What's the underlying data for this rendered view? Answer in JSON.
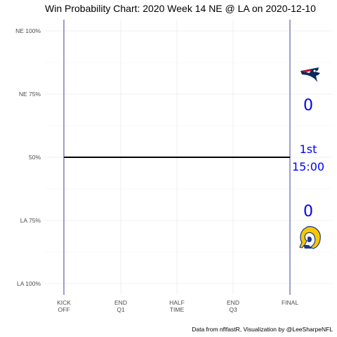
{
  "chart_data": {
    "type": "line",
    "title": "Win Probability Chart: 2020 Week 14 NE @ LA on 2020-12-10",
    "caption": "Data from nflfastR, Visualization by @LeeSharpeNFL",
    "xlabel": "",
    "ylabel": "",
    "x_ticks": [
      {
        "lines": [
          "KICK",
          "OFF"
        ]
      },
      {
        "lines": [
          "END",
          "Q1"
        ]
      },
      {
        "lines": [
          "HALF",
          "TIME"
        ]
      },
      {
        "lines": [
          "END",
          "Q3"
        ]
      },
      {
        "lines": [
          "FINAL"
        ]
      }
    ],
    "y_ticks": [
      "NE 100%",
      "NE 75%",
      "50%",
      "LA 75%",
      "LA 100%"
    ],
    "ylim": [
      0,
      1
    ],
    "grid": true,
    "series": [
      {
        "x": [
          0,
          3600
        ],
        "y": [
          0.5,
          0.5
        ],
        "color": "#000000"
      }
    ],
    "away": {
      "team": "NE",
      "score": "0",
      "color": "#0000ff",
      "logo": "patriots-logo"
    },
    "home": {
      "team": "LA",
      "score": "0",
      "color": "#0000ff",
      "logo": "rams-logo"
    },
    "game_clock": {
      "quarter": "1st",
      "time": "15:00",
      "color": "#0000ff"
    },
    "vertical_markers_color": "#2b2b8f"
  }
}
